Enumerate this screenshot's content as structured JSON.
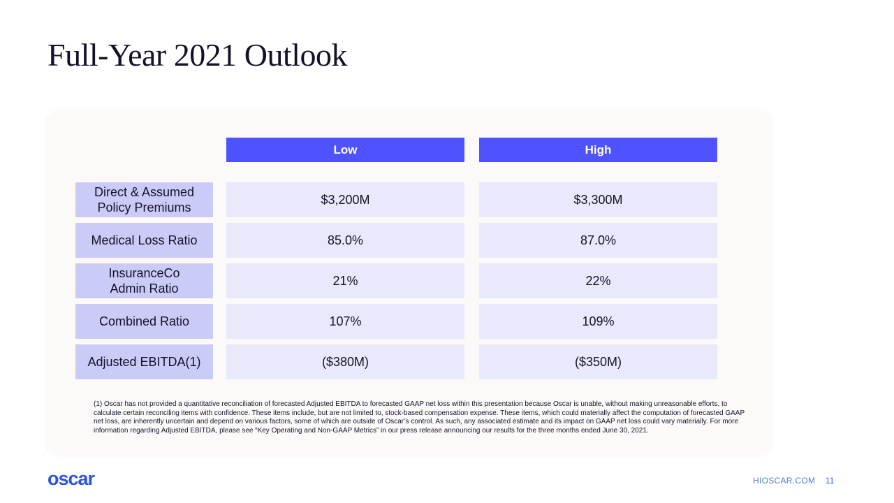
{
  "slide": {
    "title": "Full-Year 2021 Outlook",
    "website": "HIOSCAR.COM",
    "page_number": "11",
    "logo_text": "oscar"
  },
  "table": {
    "columns": [
      "Low",
      "High"
    ],
    "rows": [
      {
        "label": "Direct & Assumed\nPolicy Premiums",
        "low": "$3,200M",
        "high": "$3,300M"
      },
      {
        "label": "Medical Loss Ratio",
        "low": "85.0%",
        "high": "87.0%"
      },
      {
        "label": "InsuranceCo\nAdmin Ratio",
        "low": "21%",
        "high": "22%"
      },
      {
        "label": "Combined Ratio",
        "low": "107%",
        "high": "109%"
      },
      {
        "label": "Adjusted EBITDA(1)",
        "low": "($380M)",
        "high": "($350M)"
      }
    ]
  },
  "footnote": "(1) Oscar has not provided a quantitative reconciliation of forecasted Adjusted EBITDA to forecasted GAAP net loss within this presentation because Oscar is unable, without making unreasonable efforts, to calculate certain reconciling items with confidence. These items include, but are not limited to, stock-based compensation expense. These items, which could materially affect the computation of forecasted GAAP net loss, are inherently uncertain and depend on various factors, some of which are outside of Oscar’s control. As such, any associated estimate and its impact on GAAP net loss could vary materially.  For more information regarding Adjusted EBITDA, please see “Key Operating and Non-GAAP Metrics” in our press release announcing our results for the three months ended June 30, 2021.",
  "colors": {
    "header": "#4f53ff",
    "label_bg": "#cbcbf8",
    "cell_bg": "#e9e9fb",
    "brand": "#2a52e8"
  }
}
